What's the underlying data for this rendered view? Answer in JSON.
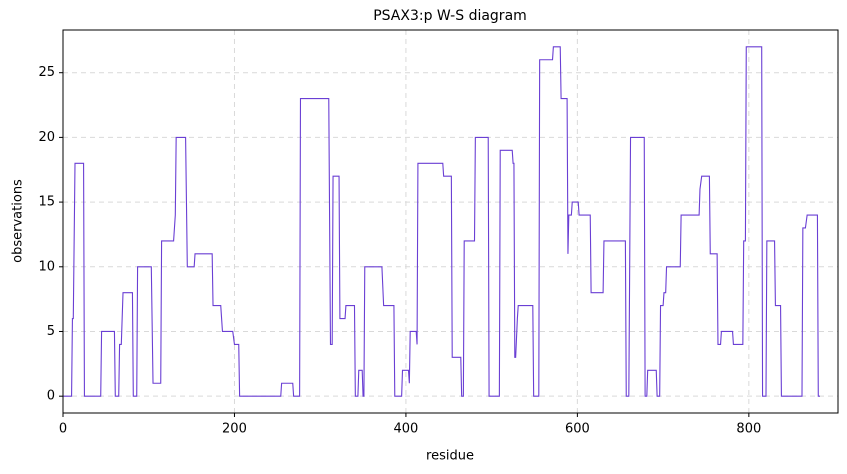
{
  "chart_data": {
    "type": "line",
    "title": "PSAX3:p W-S diagram",
    "x_label": "residue",
    "y_label": "observations",
    "series": [
      {
        "color": "#6a3fd4",
        "x": [
          0,
          10,
          11,
          12,
          14,
          24,
          25,
          44,
          45,
          60,
          61,
          65,
          66,
          68,
          70,
          81,
          82,
          86,
          87,
          103,
          105,
          114,
          115,
          129,
          131,
          132,
          143,
          145,
          153,
          154,
          174,
          175,
          184,
          185,
          186,
          198,
          200,
          205,
          206,
          254,
          255,
          268,
          269,
          276,
          277,
          310,
          312,
          314,
          315,
          322,
          323,
          329,
          330,
          340,
          341,
          344,
          345,
          349,
          350,
          351,
          352,
          372,
          374,
          386,
          387,
          395,
          396,
          403,
          404,
          405,
          412,
          413,
          414,
          443,
          444,
          453,
          454,
          464,
          465,
          467,
          468,
          480,
          481,
          496,
          497,
          509,
          510,
          524,
          525,
          526,
          527,
          528,
          530,
          531,
          548,
          549,
          555,
          556,
          571,
          572,
          580,
          581,
          588,
          589,
          590,
          593,
          594,
          601,
          602,
          615,
          616,
          630,
          631,
          656,
          657,
          660,
          662,
          678,
          679,
          681,
          682,
          692,
          693,
          696,
          697,
          700,
          701,
          703,
          704,
          720,
          721,
          742,
          743,
          745,
          754,
          755,
          763,
          764,
          767,
          768,
          781,
          782,
          793,
          794,
          796,
          797,
          815,
          816,
          820,
          821,
          830,
          831,
          837,
          838,
          862,
          863,
          866,
          868,
          880,
          881,
          883
        ],
        "values": [
          0,
          0,
          6,
          6,
          18,
          18,
          0,
          0,
          5,
          5,
          0,
          0,
          4,
          4,
          8,
          8,
          0,
          0,
          10,
          10,
          1,
          1,
          12,
          12,
          14,
          20,
          20,
          10,
          10,
          11,
          11,
          7,
          7,
          6,
          5,
          5,
          4,
          4,
          0,
          0,
          1,
          1,
          0,
          0,
          23,
          23,
          4,
          4,
          17,
          17,
          6,
          6,
          7,
          7,
          0,
          0,
          2,
          2,
          0,
          0,
          10,
          10,
          7,
          7,
          0,
          0,
          2,
          2,
          1,
          5,
          5,
          4,
          18,
          18,
          17,
          17,
          3,
          3,
          0,
          0,
          12,
          12,
          20,
          20,
          0,
          0,
          19,
          19,
          18,
          18,
          3,
          3,
          6,
          7,
          7,
          0,
          0,
          26,
          26,
          27,
          27,
          23,
          23,
          11,
          14,
          14,
          15,
          15,
          14,
          14,
          8,
          8,
          12,
          12,
          0,
          0,
          20,
          20,
          0,
          0,
          2,
          2,
          0,
          0,
          7,
          7,
          8,
          8,
          10,
          10,
          14,
          14,
          16,
          17,
          17,
          11,
          11,
          4,
          4,
          5,
          5,
          4,
          4,
          12,
          12,
          27,
          27,
          0,
          0,
          12,
          12,
          7,
          7,
          0,
          0,
          13,
          13,
          14,
          14,
          0,
          0
        ]
      }
    ],
    "xlim": [
      0,
      904
    ],
    "ylim": [
      -1.3,
      28.3
    ],
    "xticks": [
      0,
      200,
      400,
      600,
      800
    ],
    "yticks": [
      0,
      5,
      10,
      15,
      20,
      25
    ],
    "grid": true
  }
}
